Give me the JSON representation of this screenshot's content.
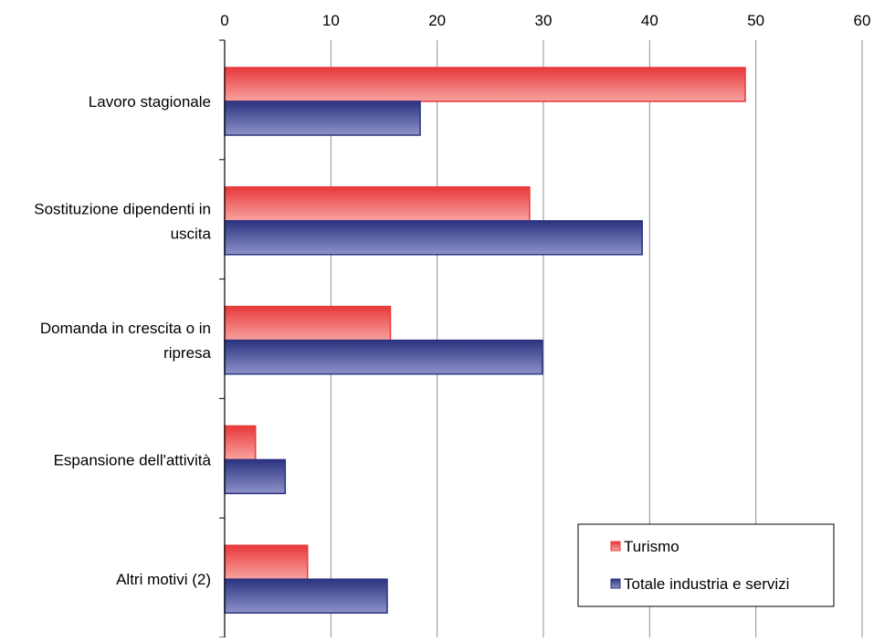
{
  "chart_data": {
    "type": "bar",
    "orientation": "horizontal",
    "categories": [
      [
        "Lavoro stagionale"
      ],
      [
        "Sostituzione dipendenti in",
        "uscita"
      ],
      [
        "Domanda in crescita o in",
        "ripresa"
      ],
      [
        "Espansione dell'attività"
      ],
      [
        "Altri motivi (2)"
      ]
    ],
    "series": [
      {
        "name": "Turismo",
        "values": [
          49,
          28.7,
          15.6,
          2.9,
          7.8
        ],
        "color": "#e8393a",
        "color_light": "#f7a3a1"
      },
      {
        "name": "Totale industria e servizi",
        "values": [
          18.4,
          39.3,
          29.9,
          5.7,
          15.3
        ],
        "color": "#2b3380",
        "color_light": "#8e93c8"
      }
    ],
    "xlim": [
      0,
      60
    ],
    "xticks": [
      "0",
      "10",
      "20",
      "30",
      "40",
      "50",
      "60"
    ],
    "tick_values": [
      0,
      10,
      20,
      30,
      40,
      50,
      60
    ],
    "x_axis_position": "top",
    "grid": true,
    "legend_position": "bottom-right"
  }
}
